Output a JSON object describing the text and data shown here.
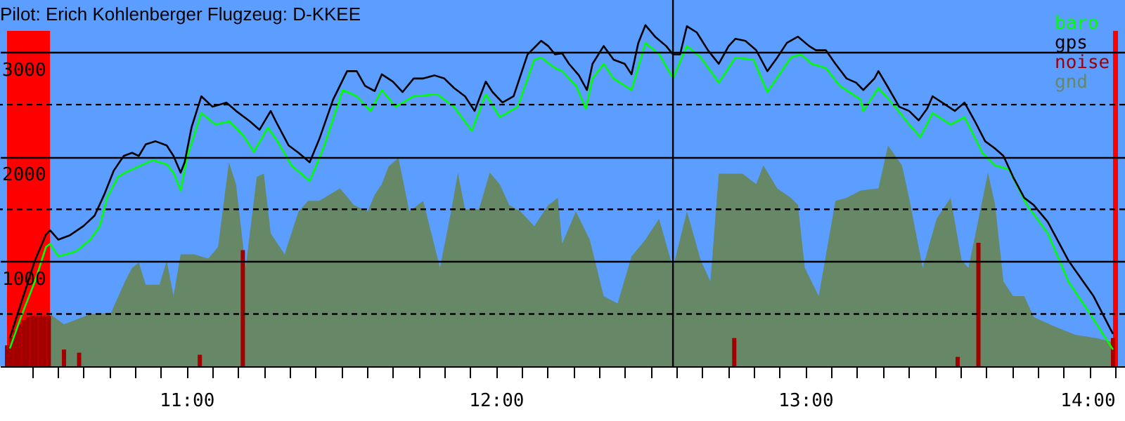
{
  "chart_data": {
    "type": "line",
    "title": "Pilot: Erich Kohlenberger Flugzeug: D-KKEE",
    "series": [
      {
        "name": "baro",
        "color": "#00ff00",
        "x": [
          10.429,
          10.465,
          10.51,
          10.546,
          10.559,
          10.586,
          10.644,
          10.689,
          10.72,
          10.743,
          10.779,
          10.801,
          10.846,
          10.891,
          10.936,
          10.958,
          10.981,
          11.003,
          11.048,
          11.093,
          11.138,
          11.182,
          11.218,
          11.263,
          11.294,
          11.339,
          11.398,
          11.442,
          11.505,
          11.55,
          11.595,
          11.631,
          11.676,
          11.734,
          11.81,
          11.864,
          11.922,
          11.967,
          12.012,
          12.07,
          12.124,
          12.146,
          12.191,
          12.214,
          12.259,
          12.29,
          12.312,
          12.348,
          12.38,
          12.438,
          12.483,
          12.528,
          12.572,
          12.617,
          12.662,
          12.72,
          12.774,
          12.832,
          12.877,
          12.953,
          12.985,
          13.021,
          13.066,
          13.111,
          13.178,
          13.187,
          13.236,
          13.29,
          13.335,
          13.371,
          13.411,
          13.469,
          13.514,
          13.572,
          13.613,
          13.658,
          13.716,
          13.783,
          13.85,
          13.918,
          13.985,
          13.994
        ],
        "values": [
          170,
          470,
          810,
          1140,
          1170,
          1050,
          1100,
          1210,
          1340,
          1610,
          1810,
          1850,
          1910,
          1970,
          1930,
          1850,
          1680,
          2010,
          2420,
          2310,
          2340,
          2210,
          2050,
          2280,
          2150,
          1920,
          1770,
          2080,
          2640,
          2580,
          2440,
          2640,
          2480,
          2580,
          2600,
          2480,
          2250,
          2600,
          2380,
          2480,
          2930,
          2950,
          2850,
          2820,
          2680,
          2460,
          2750,
          2890,
          2750,
          2640,
          3090,
          2980,
          2750,
          3060,
          2950,
          2710,
          2950,
          2930,
          2620,
          2950,
          2980,
          2890,
          2850,
          2680,
          2550,
          2440,
          2660,
          2480,
          2310,
          2190,
          2420,
          2310,
          2380,
          2040,
          1920,
          1880,
          1540,
          1270,
          810,
          510,
          200,
          160
        ]
      },
      {
        "name": "gps",
        "color": "#000000",
        "x": [
          10.429,
          10.465,
          10.51,
          10.546,
          10.559,
          10.586,
          10.622,
          10.667,
          10.703,
          10.734,
          10.765,
          10.797,
          10.824,
          10.846,
          10.868,
          10.9,
          10.936,
          10.958,
          10.981,
          10.994,
          11.016,
          11.048,
          11.084,
          11.129,
          11.16,
          11.205,
          11.236,
          11.272,
          11.294,
          11.33,
          11.362,
          11.398,
          11.429,
          11.474,
          11.519,
          11.55,
          11.577,
          11.608,
          11.631,
          11.667,
          11.698,
          11.734,
          11.765,
          11.801,
          11.833,
          11.864,
          11.9,
          11.931,
          11.967,
          11.989,
          12.021,
          12.057,
          12.102,
          12.146,
          12.169,
          12.191,
          12.214,
          12.236,
          12.268,
          12.294,
          12.312,
          12.348,
          12.38,
          12.416,
          12.438,
          12.46,
          12.483,
          12.514,
          12.55,
          12.572,
          12.595,
          12.617,
          12.649,
          12.685,
          12.72,
          12.752,
          12.774,
          12.806,
          12.841,
          12.877,
          12.909,
          12.94,
          12.976,
          13.012,
          13.034,
          13.066,
          13.097,
          13.133,
          13.164,
          13.187,
          13.223,
          13.236,
          13.268,
          13.303,
          13.335,
          13.366,
          13.393,
          13.411,
          13.447,
          13.483,
          13.514,
          13.546,
          13.581,
          13.613,
          13.64,
          13.671,
          13.707,
          13.738,
          13.783,
          13.85,
          13.931,
          13.985,
          13.994
        ],
        "values": [
          270,
          600,
          1010,
          1260,
          1300,
          1210,
          1250,
          1340,
          1440,
          1640,
          1870,
          2010,
          2040,
          2010,
          2120,
          2150,
          2110,
          2010,
          1850,
          1950,
          2280,
          2580,
          2480,
          2520,
          2440,
          2340,
          2260,
          2440,
          2310,
          2110,
          2040,
          1950,
          2170,
          2550,
          2820,
          2820,
          2680,
          2630,
          2790,
          2720,
          2620,
          2750,
          2750,
          2780,
          2750,
          2660,
          2580,
          2440,
          2720,
          2620,
          2520,
          2580,
          2980,
          3110,
          3060,
          2980,
          2990,
          2890,
          2780,
          2640,
          2890,
          3060,
          2930,
          2890,
          2790,
          3090,
          3260,
          3150,
          3060,
          2980,
          2980,
          3250,
          3190,
          3020,
          2890,
          3060,
          3130,
          3110,
          3020,
          2820,
          2950,
          3090,
          3150,
          3060,
          3020,
          3020,
          2890,
          2750,
          2710,
          2640,
          2750,
          2820,
          2660,
          2480,
          2440,
          2350,
          2460,
          2580,
          2510,
          2440,
          2520,
          2350,
          2150,
          2080,
          2010,
          1810,
          1610,
          1540,
          1380,
          1010,
          670,
          360,
          310
        ]
      },
      {
        "name": "noise",
        "type": "bar",
        "color": "#a00000",
        "x": [
          10.42,
          10.433,
          10.447,
          10.46,
          10.474,
          10.487,
          10.501,
          10.514,
          10.528,
          10.541,
          10.555,
          10.604,
          10.653,
          11.043,
          11.182,
          12.77,
          13.492,
          13.559,
          13.994
        ],
        "values": [
          200,
          280,
          340,
          400,
          440,
          470,
          480,
          480,
          480,
          480,
          480,
          160,
          130,
          110,
          1110,
          270,
          90,
          1180,
          270
        ]
      },
      {
        "name": "gnd",
        "type": "area",
        "color": "#668866",
        "x": [
          10.559,
          10.604,
          10.689,
          10.756,
          10.801,
          10.824,
          10.846,
          10.868,
          10.913,
          10.936,
          10.958,
          10.981,
          11.025,
          11.07,
          11.102,
          11.137,
          11.16,
          11.191,
          11.227,
          11.25,
          11.272,
          11.317,
          11.339,
          11.362,
          11.393,
          11.429,
          11.496,
          11.541,
          11.586,
          11.608,
          11.631,
          11.653,
          11.685,
          11.72,
          11.765,
          11.819,
          11.855,
          11.877,
          11.9,
          11.945,
          11.98,
          12.012,
          12.043,
          12.079,
          12.124,
          12.169,
          12.2,
          12.214,
          12.258,
          12.303,
          12.348,
          12.393,
          12.438,
          12.483,
          12.527,
          12.572,
          12.617,
          12.662,
          12.693,
          12.72,
          12.797,
          12.841,
          12.864,
          12.909,
          12.953,
          12.976,
          12.998,
          13.043,
          13.097,
          13.133,
          13.178,
          13.236,
          13.267,
          13.312,
          13.335,
          13.379,
          13.424,
          13.469,
          13.505,
          13.527,
          13.59,
          13.613,
          13.64,
          13.671,
          13.707,
          13.738,
          13.805,
          13.873,
          13.94,
          13.994
        ],
        "values": [
          500,
          400,
          500,
          510,
          810,
          940,
          990,
          780,
          780,
          1010,
          670,
          1070,
          1070,
          1030,
          1140,
          1950,
          1740,
          940,
          1810,
          1840,
          1270,
          1070,
          1270,
          1480,
          1580,
          1580,
          1700,
          1540,
          1480,
          1640,
          1740,
          1910,
          1990,
          1480,
          1580,
          940,
          1480,
          1850,
          1500,
          1500,
          1850,
          1740,
          1540,
          1480,
          1340,
          1540,
          1610,
          1170,
          1480,
          1210,
          670,
          600,
          1050,
          1210,
          1410,
          940,
          1480,
          1010,
          810,
          1840,
          1840,
          1740,
          1920,
          1700,
          1610,
          1540,
          940,
          670,
          1580,
          1610,
          1680,
          1700,
          2110,
          1920,
          1610,
          940,
          1410,
          1610,
          1010,
          940,
          1850,
          1540,
          810,
          670,
          670,
          470,
          380,
          300,
          270,
          230
        ]
      }
    ],
    "xlim": [
      10.42,
      14.01
    ],
    "xticks": [
      {
        "value": 10.5,
        "label": null
      },
      {
        "value": 10.583,
        "label": null
      },
      {
        "value": 10.667,
        "label": null
      },
      {
        "value": 10.75,
        "label": null
      },
      {
        "value": 10.833,
        "label": null
      },
      {
        "value": 10.917,
        "label": null
      },
      {
        "value": 11,
        "label": "11:00"
      },
      {
        "value": 11.083,
        "label": null
      },
      {
        "value": 11.167,
        "label": null
      },
      {
        "value": 11.25,
        "label": null
      },
      {
        "value": 11.333,
        "label": null
      },
      {
        "value": 11.417,
        "label": null
      },
      {
        "value": 11.5,
        "label": null
      },
      {
        "value": 11.583,
        "label": null
      },
      {
        "value": 11.667,
        "label": null
      },
      {
        "value": 11.75,
        "label": null
      },
      {
        "value": 11.833,
        "label": null
      },
      {
        "value": 11.917,
        "label": null
      },
      {
        "value": 12,
        "label": "12:00"
      },
      {
        "value": 12.083,
        "label": null
      },
      {
        "value": 12.167,
        "label": null
      },
      {
        "value": 12.25,
        "label": null
      },
      {
        "value": 12.333,
        "label": null
      },
      {
        "value": 12.417,
        "label": null
      },
      {
        "value": 12.5,
        "label": null
      },
      {
        "value": 12.583,
        "label": null
      },
      {
        "value": 12.667,
        "label": null
      },
      {
        "value": 12.75,
        "label": null
      },
      {
        "value": 12.833,
        "label": null
      },
      {
        "value": 12.917,
        "label": null
      },
      {
        "value": 13,
        "label": "13:00"
      },
      {
        "value": 13.083,
        "label": null
      },
      {
        "value": 13.167,
        "label": null
      },
      {
        "value": 13.25,
        "label": null
      },
      {
        "value": 13.333,
        "label": null
      },
      {
        "value": 13.417,
        "label": null
      },
      {
        "value": 13.5,
        "label": null
      },
      {
        "value": 13.583,
        "label": null
      },
      {
        "value": 13.667,
        "label": null
      },
      {
        "value": 13.75,
        "label": null
      },
      {
        "value": 13.833,
        "label": null
      },
      {
        "value": 13.917,
        "label": null
      },
      {
        "value": 14,
        "label": "14:00"
      }
    ],
    "ylim": [
      0,
      3500
    ],
    "yticks": [
      1000,
      2000,
      3000
    ],
    "grid": "y",
    "legend": "top right",
    "marker": "none",
    "line_style": "solid",
    "ref_lines": [
      {
        "axis": "y",
        "value": 500,
        "color": "#000000",
        "line_style": "dashed"
      },
      {
        "axis": "y",
        "value": 1500,
        "color": "#000000",
        "line_style": "dashed"
      },
      {
        "axis": "y",
        "value": 2500,
        "color": "#000000",
        "line_style": "dashed"
      },
      {
        "axis": "x",
        "value": 12.572,
        "color": "#000000",
        "line_style": "solid"
      }
    ],
    "bands": [
      {
        "axis": "x",
        "from": 10.42,
        "to": 10.559,
        "color": "#ff0000"
      },
      {
        "axis": "x",
        "from": 13.994,
        "to": 14.01,
        "color": "#ff0000"
      }
    ]
  }
}
